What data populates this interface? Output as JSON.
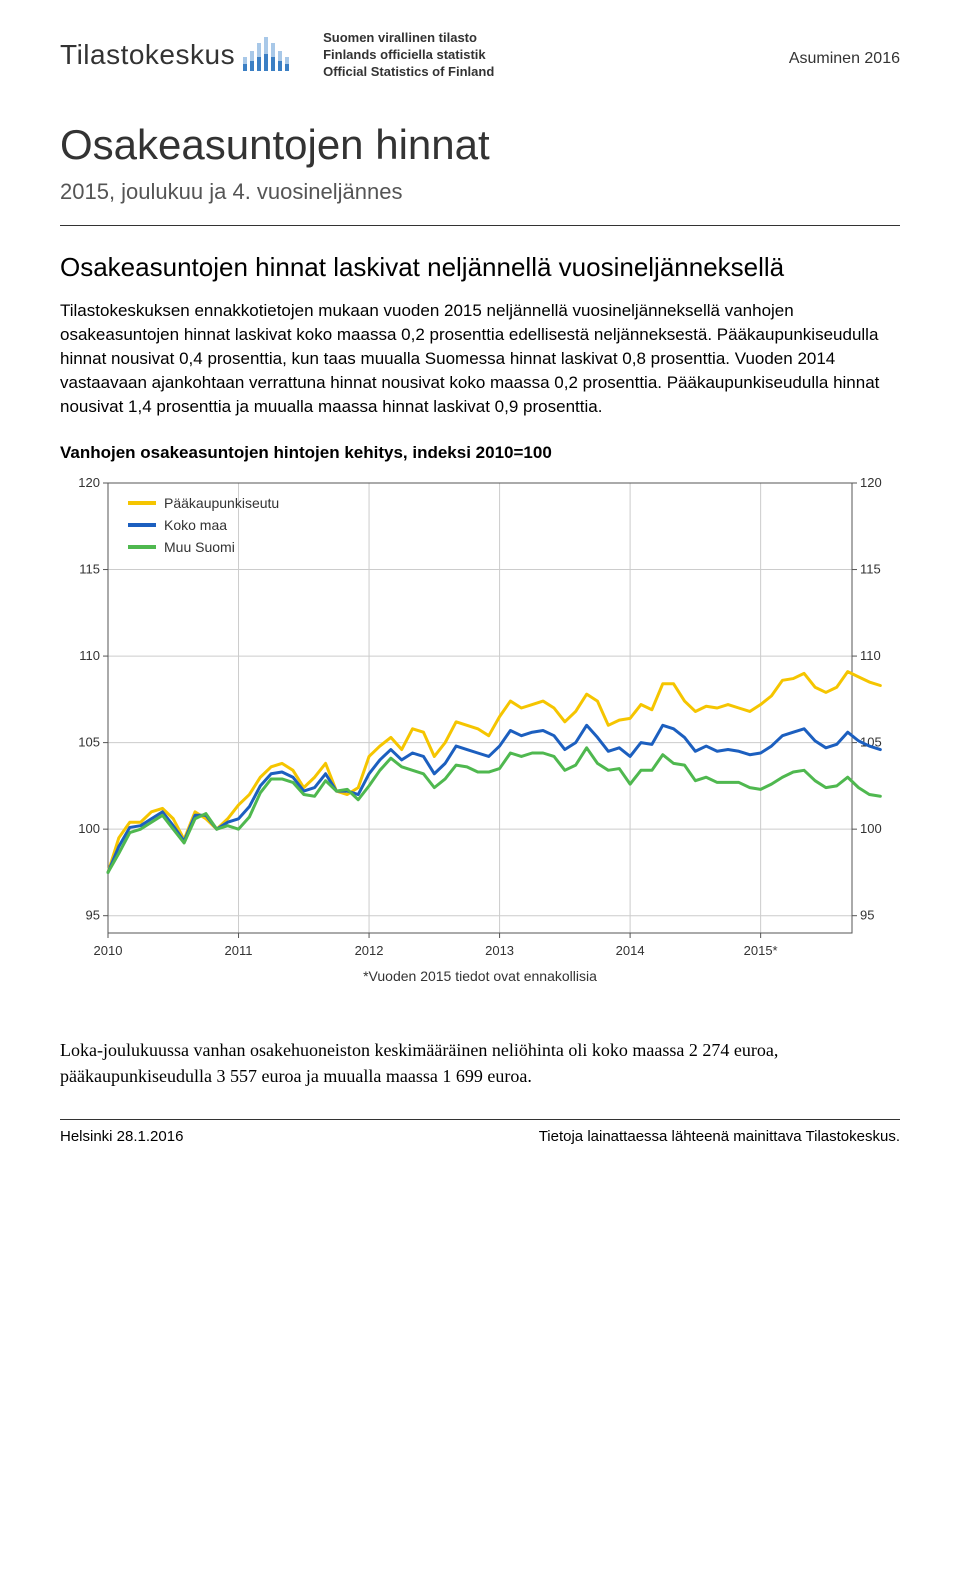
{
  "header": {
    "logo_text": "Tilastokeskus",
    "official_lines": [
      "Suomen virallinen tilasto",
      "Finlands officiella statistik",
      "Official Statistics of Finland"
    ],
    "category": "Asuminen 2016"
  },
  "title": "Osakeasuntojen hinnat",
  "subtitle": "2015, joulukuu ja 4. vuosineljännes",
  "section_heading": "Osakeasuntojen hinnat laskivat neljännellä vuosineljänneksellä",
  "paragraphs": [
    "Tilastokeskuksen ennakkotietojen mukaan vuoden 2015 neljännellä vuosineljänneksellä vanhojen osakeasuntojen hinnat laskivat koko maassa 0,2 prosenttia edellisestä neljänneksestä. Pääkaupunkiseudulla hinnat nousivat 0,4 prosenttia, kun taas muualla Suomessa hinnat laskivat 0,8 prosenttia. Vuoden 2014 vastaavaan ajankohtaan verrattuna hinnat nousivat koko maassa 0,2 prosenttia. Pääkaupunkiseudulla hinnat nousivat 1,4 prosenttia ja muualla maassa hinnat laskivat 0,9 prosenttia."
  ],
  "chart": {
    "title": "Vanhojen osakeasuntojen hintojen kehitys, indeksi 2010=100",
    "type": "line",
    "x_labels": [
      "2010",
      "2011",
      "2012",
      "2013",
      "2014",
      "2015*"
    ],
    "x_positions": [
      0,
      1,
      2,
      3,
      4,
      5
    ],
    "x_max": 5.7,
    "y_ticks": [
      95,
      100,
      105,
      110,
      115,
      120
    ],
    "ylim": [
      94,
      120
    ],
    "footnote": "*Vuoden 2015 tiedot ovat ennakollisia",
    "background_color": "#ffffff",
    "grid_color": "#cccccc",
    "axis_color": "#555555",
    "text_color": "#333333",
    "line_width": 3,
    "tick_fontsize": 13,
    "legend_fontsize": 14,
    "legend": [
      {
        "label": "Pääkaupunkiseutu",
        "color": "#f5c500"
      },
      {
        "label": "Koko maa",
        "color": "#1c5fbf"
      },
      {
        "label": "Muu Suomi",
        "color": "#4fb84f"
      }
    ],
    "series": {
      "paakaupunkiseutu": {
        "color": "#f5c500",
        "points": [
          {
            "x": 0.0,
            "y": 97.5
          },
          {
            "x": 0.083,
            "y": 99.5
          },
          {
            "x": 0.167,
            "y": 100.4
          },
          {
            "x": 0.25,
            "y": 100.4
          },
          {
            "x": 0.333,
            "y": 101.0
          },
          {
            "x": 0.417,
            "y": 101.2
          },
          {
            "x": 0.5,
            "y": 100.6
          },
          {
            "x": 0.583,
            "y": 99.4
          },
          {
            "x": 0.667,
            "y": 101.0
          },
          {
            "x": 0.75,
            "y": 100.6
          },
          {
            "x": 0.833,
            "y": 100.0
          },
          {
            "x": 0.917,
            "y": 100.6
          },
          {
            "x": 1.0,
            "y": 101.4
          },
          {
            "x": 1.083,
            "y": 102.0
          },
          {
            "x": 1.167,
            "y": 103.0
          },
          {
            "x": 1.25,
            "y": 103.6
          },
          {
            "x": 1.333,
            "y": 103.8
          },
          {
            "x": 1.417,
            "y": 103.4
          },
          {
            "x": 1.5,
            "y": 102.4
          },
          {
            "x": 1.583,
            "y": 103.0
          },
          {
            "x": 1.667,
            "y": 103.8
          },
          {
            "x": 1.75,
            "y": 102.2
          },
          {
            "x": 1.833,
            "y": 102.0
          },
          {
            "x": 1.917,
            "y": 102.4
          },
          {
            "x": 2.0,
            "y": 104.2
          },
          {
            "x": 2.083,
            "y": 104.8
          },
          {
            "x": 2.167,
            "y": 105.3
          },
          {
            "x": 2.25,
            "y": 104.6
          },
          {
            "x": 2.333,
            "y": 105.8
          },
          {
            "x": 2.417,
            "y": 105.6
          },
          {
            "x": 2.5,
            "y": 104.2
          },
          {
            "x": 2.583,
            "y": 105.0
          },
          {
            "x": 2.667,
            "y": 106.2
          },
          {
            "x": 2.75,
            "y": 106.0
          },
          {
            "x": 2.833,
            "y": 105.8
          },
          {
            "x": 2.917,
            "y": 105.4
          },
          {
            "x": 3.0,
            "y": 106.5
          },
          {
            "x": 3.083,
            "y": 107.4
          },
          {
            "x": 3.167,
            "y": 107.0
          },
          {
            "x": 3.25,
            "y": 107.2
          },
          {
            "x": 3.333,
            "y": 107.4
          },
          {
            "x": 3.417,
            "y": 107.0
          },
          {
            "x": 3.5,
            "y": 106.2
          },
          {
            "x": 3.583,
            "y": 106.8
          },
          {
            "x": 3.667,
            "y": 107.8
          },
          {
            "x": 3.75,
            "y": 107.4
          },
          {
            "x": 3.833,
            "y": 106.0
          },
          {
            "x": 3.917,
            "y": 106.3
          },
          {
            "x": 4.0,
            "y": 106.4
          },
          {
            "x": 4.083,
            "y": 107.2
          },
          {
            "x": 4.167,
            "y": 106.9
          },
          {
            "x": 4.25,
            "y": 108.4
          },
          {
            "x": 4.333,
            "y": 108.4
          },
          {
            "x": 4.417,
            "y": 107.4
          },
          {
            "x": 4.5,
            "y": 106.8
          },
          {
            "x": 4.583,
            "y": 107.1
          },
          {
            "x": 4.667,
            "y": 107.0
          },
          {
            "x": 4.75,
            "y": 107.2
          },
          {
            "x": 4.833,
            "y": 107.0
          },
          {
            "x": 4.917,
            "y": 106.8
          },
          {
            "x": 5.0,
            "y": 107.2
          },
          {
            "x": 5.083,
            "y": 107.7
          },
          {
            "x": 5.167,
            "y": 108.6
          },
          {
            "x": 5.25,
            "y": 108.7
          },
          {
            "x": 5.333,
            "y": 109.0
          },
          {
            "x": 5.417,
            "y": 108.2
          },
          {
            "x": 5.5,
            "y": 107.9
          },
          {
            "x": 5.583,
            "y": 108.2
          },
          {
            "x": 5.667,
            "y": 109.1
          },
          {
            "x": 5.75,
            "y": 108.8
          },
          {
            "x": 5.833,
            "y": 108.5
          },
          {
            "x": 5.917,
            "y": 108.3
          }
        ]
      },
      "koko_maa": {
        "color": "#1c5fbf",
        "points": [
          {
            "x": 0.0,
            "y": 97.5
          },
          {
            "x": 0.083,
            "y": 99.0
          },
          {
            "x": 0.167,
            "y": 100.1
          },
          {
            "x": 0.25,
            "y": 100.2
          },
          {
            "x": 0.333,
            "y": 100.6
          },
          {
            "x": 0.417,
            "y": 101.0
          },
          {
            "x": 0.5,
            "y": 100.2
          },
          {
            "x": 0.583,
            "y": 99.3
          },
          {
            "x": 0.667,
            "y": 100.8
          },
          {
            "x": 0.75,
            "y": 100.8
          },
          {
            "x": 0.833,
            "y": 100.0
          },
          {
            "x": 0.917,
            "y": 100.4
          },
          {
            "x": 1.0,
            "y": 100.6
          },
          {
            "x": 1.083,
            "y": 101.3
          },
          {
            "x": 1.167,
            "y": 102.5
          },
          {
            "x": 1.25,
            "y": 103.2
          },
          {
            "x": 1.333,
            "y": 103.3
          },
          {
            "x": 1.417,
            "y": 103.0
          },
          {
            "x": 1.5,
            "y": 102.2
          },
          {
            "x": 1.583,
            "y": 102.4
          },
          {
            "x": 1.667,
            "y": 103.2
          },
          {
            "x": 1.75,
            "y": 102.2
          },
          {
            "x": 1.833,
            "y": 102.2
          },
          {
            "x": 1.917,
            "y": 102.0
          },
          {
            "x": 2.0,
            "y": 103.2
          },
          {
            "x": 2.083,
            "y": 104.0
          },
          {
            "x": 2.167,
            "y": 104.6
          },
          {
            "x": 2.25,
            "y": 104.0
          },
          {
            "x": 2.333,
            "y": 104.4
          },
          {
            "x": 2.417,
            "y": 104.2
          },
          {
            "x": 2.5,
            "y": 103.2
          },
          {
            "x": 2.583,
            "y": 103.8
          },
          {
            "x": 2.667,
            "y": 104.8
          },
          {
            "x": 2.75,
            "y": 104.6
          },
          {
            "x": 2.833,
            "y": 104.4
          },
          {
            "x": 2.917,
            "y": 104.2
          },
          {
            "x": 3.0,
            "y": 104.8
          },
          {
            "x": 3.083,
            "y": 105.7
          },
          {
            "x": 3.167,
            "y": 105.4
          },
          {
            "x": 3.25,
            "y": 105.6
          },
          {
            "x": 3.333,
            "y": 105.7
          },
          {
            "x": 3.417,
            "y": 105.4
          },
          {
            "x": 3.5,
            "y": 104.6
          },
          {
            "x": 3.583,
            "y": 105.0
          },
          {
            "x": 3.667,
            "y": 106.0
          },
          {
            "x": 3.75,
            "y": 105.3
          },
          {
            "x": 3.833,
            "y": 104.5
          },
          {
            "x": 3.917,
            "y": 104.7
          },
          {
            "x": 4.0,
            "y": 104.2
          },
          {
            "x": 4.083,
            "y": 105.0
          },
          {
            "x": 4.167,
            "y": 104.9
          },
          {
            "x": 4.25,
            "y": 106.0
          },
          {
            "x": 4.333,
            "y": 105.8
          },
          {
            "x": 4.417,
            "y": 105.3
          },
          {
            "x": 4.5,
            "y": 104.5
          },
          {
            "x": 4.583,
            "y": 104.8
          },
          {
            "x": 4.667,
            "y": 104.5
          },
          {
            "x": 4.75,
            "y": 104.6
          },
          {
            "x": 4.833,
            "y": 104.5
          },
          {
            "x": 4.917,
            "y": 104.3
          },
          {
            "x": 5.0,
            "y": 104.4
          },
          {
            "x": 5.083,
            "y": 104.8
          },
          {
            "x": 5.167,
            "y": 105.4
          },
          {
            "x": 5.25,
            "y": 105.6
          },
          {
            "x": 5.333,
            "y": 105.8
          },
          {
            "x": 5.417,
            "y": 105.1
          },
          {
            "x": 5.5,
            "y": 104.7
          },
          {
            "x": 5.583,
            "y": 104.9
          },
          {
            "x": 5.667,
            "y": 105.6
          },
          {
            "x": 5.75,
            "y": 105.1
          },
          {
            "x": 5.833,
            "y": 104.8
          },
          {
            "x": 5.917,
            "y": 104.6
          }
        ]
      },
      "muu_suomi": {
        "color": "#4fb84f",
        "points": [
          {
            "x": 0.0,
            "y": 97.5
          },
          {
            "x": 0.083,
            "y": 98.6
          },
          {
            "x": 0.167,
            "y": 99.8
          },
          {
            "x": 0.25,
            "y": 100.0
          },
          {
            "x": 0.333,
            "y": 100.4
          },
          {
            "x": 0.417,
            "y": 100.8
          },
          {
            "x": 0.5,
            "y": 100.0
          },
          {
            "x": 0.583,
            "y": 99.2
          },
          {
            "x": 0.667,
            "y": 100.6
          },
          {
            "x": 0.75,
            "y": 100.9
          },
          {
            "x": 0.833,
            "y": 100.0
          },
          {
            "x": 0.917,
            "y": 100.2
          },
          {
            "x": 1.0,
            "y": 100.0
          },
          {
            "x": 1.083,
            "y": 100.7
          },
          {
            "x": 1.167,
            "y": 102.1
          },
          {
            "x": 1.25,
            "y": 102.9
          },
          {
            "x": 1.333,
            "y": 102.9
          },
          {
            "x": 1.417,
            "y": 102.7
          },
          {
            "x": 1.5,
            "y": 102.0
          },
          {
            "x": 1.583,
            "y": 101.9
          },
          {
            "x": 1.667,
            "y": 102.8
          },
          {
            "x": 1.75,
            "y": 102.2
          },
          {
            "x": 1.833,
            "y": 102.3
          },
          {
            "x": 1.917,
            "y": 101.7
          },
          {
            "x": 2.0,
            "y": 102.5
          },
          {
            "x": 2.083,
            "y": 103.4
          },
          {
            "x": 2.167,
            "y": 104.1
          },
          {
            "x": 2.25,
            "y": 103.6
          },
          {
            "x": 2.333,
            "y": 103.4
          },
          {
            "x": 2.417,
            "y": 103.2
          },
          {
            "x": 2.5,
            "y": 102.4
          },
          {
            "x": 2.583,
            "y": 102.9
          },
          {
            "x": 2.667,
            "y": 103.7
          },
          {
            "x": 2.75,
            "y": 103.6
          },
          {
            "x": 2.833,
            "y": 103.3
          },
          {
            "x": 2.917,
            "y": 103.3
          },
          {
            "x": 3.0,
            "y": 103.5
          },
          {
            "x": 3.083,
            "y": 104.4
          },
          {
            "x": 3.167,
            "y": 104.2
          },
          {
            "x": 3.25,
            "y": 104.4
          },
          {
            "x": 3.333,
            "y": 104.4
          },
          {
            "x": 3.417,
            "y": 104.2
          },
          {
            "x": 3.5,
            "y": 103.4
          },
          {
            "x": 3.583,
            "y": 103.7
          },
          {
            "x": 3.667,
            "y": 104.7
          },
          {
            "x": 3.75,
            "y": 103.8
          },
          {
            "x": 3.833,
            "y": 103.4
          },
          {
            "x": 3.917,
            "y": 103.5
          },
          {
            "x": 4.0,
            "y": 102.6
          },
          {
            "x": 4.083,
            "y": 103.4
          },
          {
            "x": 4.167,
            "y": 103.4
          },
          {
            "x": 4.25,
            "y": 104.3
          },
          {
            "x": 4.333,
            "y": 103.8
          },
          {
            "x": 4.417,
            "y": 103.7
          },
          {
            "x": 4.5,
            "y": 102.8
          },
          {
            "x": 4.583,
            "y": 103.0
          },
          {
            "x": 4.667,
            "y": 102.7
          },
          {
            "x": 4.75,
            "y": 102.7
          },
          {
            "x": 4.833,
            "y": 102.7
          },
          {
            "x": 4.917,
            "y": 102.4
          },
          {
            "x": 5.0,
            "y": 102.3
          },
          {
            "x": 5.083,
            "y": 102.6
          },
          {
            "x": 5.167,
            "y": 103.0
          },
          {
            "x": 5.25,
            "y": 103.3
          },
          {
            "x": 5.333,
            "y": 103.4
          },
          {
            "x": 5.417,
            "y": 102.8
          },
          {
            "x": 5.5,
            "y": 102.4
          },
          {
            "x": 5.583,
            "y": 102.5
          },
          {
            "x": 5.667,
            "y": 103.0
          },
          {
            "x": 5.75,
            "y": 102.4
          },
          {
            "x": 5.833,
            "y": 102.0
          },
          {
            "x": 5.917,
            "y": 101.9
          }
        ]
      }
    }
  },
  "closing_paragraph": "Loka-joulukuussa vanhan osakehuoneiston keskimääräinen neliöhinta oli koko maassa 2 274 euroa, pääkaupunkiseudulla 3 557 euroa ja muualla maassa 1 699 euroa.",
  "footer": {
    "left": "Helsinki 28.1.2016",
    "right": "Tietoja lainattaessa lähteenä mainittava Tilastokeskus."
  },
  "logo_bars": {
    "color_light": "#a8c8e8",
    "color_dark": "#3b7fc4",
    "heights": [
      14,
      20,
      28,
      34,
      28,
      20,
      14
    ]
  }
}
